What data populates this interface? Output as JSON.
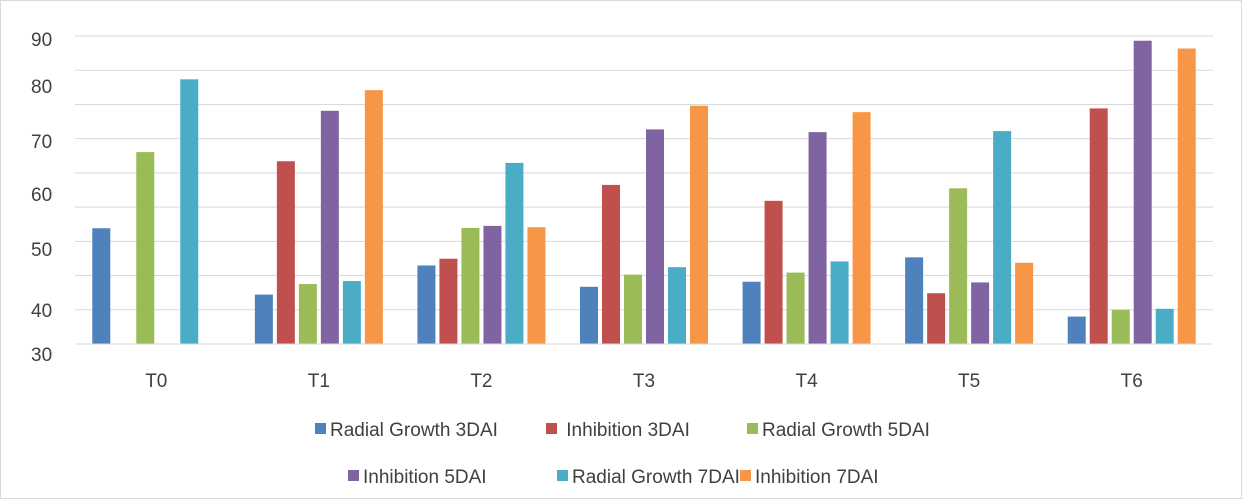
{
  "chart_data": {
    "type": "bar",
    "categories": [
      "T0",
      "T1",
      "T2",
      "T3",
      "T4",
      "T5",
      "T6"
    ],
    "series": [
      {
        "name": "Radial Growth 3DAI",
        "color": "#4F81BD",
        "values": [
          47.2,
          27.6,
          36.2,
          29.9,
          31.4,
          38.6,
          21.1
        ]
      },
      {
        "name": " Inhibition 3DAI",
        "color": "#C0504D",
        "values": [
          null,
          67.0,
          38.2,
          60.0,
          55.3,
          28.0,
          82.6
        ]
      },
      {
        "name": "Radial Growth 5DAI",
        "color": "#9BBB59",
        "values": [
          69.7,
          30.7,
          47.3,
          33.5,
          34.1,
          59.0,
          23.1
        ]
      },
      {
        "name": "Inhibition 5DAI",
        "color": "#8064A2",
        "values": [
          null,
          81.9,
          47.9,
          76.4,
          75.6,
          31.2,
          102.6
        ]
      },
      {
        "name": "Radial Growth 7DAI",
        "color": "#4BACC6",
        "values": [
          91.2,
          31.6,
          66.5,
          35.7,
          37.4,
          75.9,
          23.4
        ]
      },
      {
        "name": "Inhibition 7DAI",
        "color": "#F79646",
        "values": [
          null,
          88.0,
          47.5,
          83.4,
          81.5,
          37.0,
          100.3
        ]
      }
    ],
    "y_tick_labels": [
      "90",
      "80",
      "70",
      "60",
      "50",
      "40",
      "30"
    ],
    "ylim": [
      13,
      104
    ],
    "grid": true,
    "legend_position": "bottom"
  }
}
